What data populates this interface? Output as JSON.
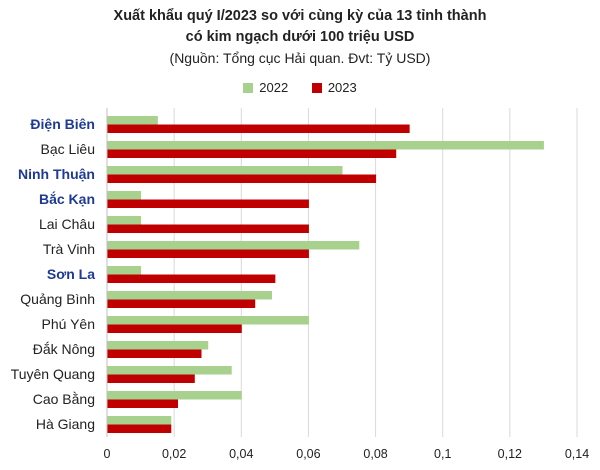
{
  "titles": {
    "line1": "Xuất khẩu quý I/2023 so với cùng kỳ của 13 tỉnh thành",
    "line2": "có kim ngạch dưới 100 triệu USD",
    "line3": "(Nguồn: Tổng cục Hải quan. Đvt: Tỷ USD)"
  },
  "chart_data": {
    "type": "bar",
    "orientation": "horizontal",
    "categories": [
      "Điện Biên",
      "Bạc Liêu",
      "Ninh Thuận",
      "Bắc Kạn",
      "Lai Châu",
      "Trà Vinh",
      "Sơn La",
      "Quảng Bình",
      "Phú Yên",
      "Đắk Nông",
      "Tuyên Quang",
      "Cao Bằng",
      "Hà Giang"
    ],
    "highlighted_categories": [
      "Điện Biên",
      "Ninh Thuận",
      "Bắc Kạn",
      "Sơn La"
    ],
    "series": [
      {
        "name": "2022",
        "color": "#a9d18e",
        "values": [
          0.015,
          0.13,
          0.07,
          0.01,
          0.01,
          0.075,
          0.01,
          0.049,
          0.06,
          0.03,
          0.037,
          0.04,
          0.019
        ]
      },
      {
        "name": "2023",
        "color": "#c00000",
        "values": [
          0.09,
          0.086,
          0.08,
          0.06,
          0.06,
          0.06,
          0.05,
          0.044,
          0.04,
          0.028,
          0.026,
          0.021,
          0.019
        ]
      }
    ],
    "xlim": [
      0,
      0.14
    ],
    "xticks": [
      0,
      0.02,
      0.04,
      0.06,
      0.08,
      0.1,
      0.12,
      0.14
    ],
    "xtick_labels": [
      "0",
      "0,02",
      "0,04",
      "0,06",
      "0,08",
      "0,1",
      "0,12",
      "0,14"
    ],
    "grid": "vertical",
    "legend": "top-center",
    "label_color_default": "#222222",
    "label_color_highlight": "#1f3a93"
  }
}
